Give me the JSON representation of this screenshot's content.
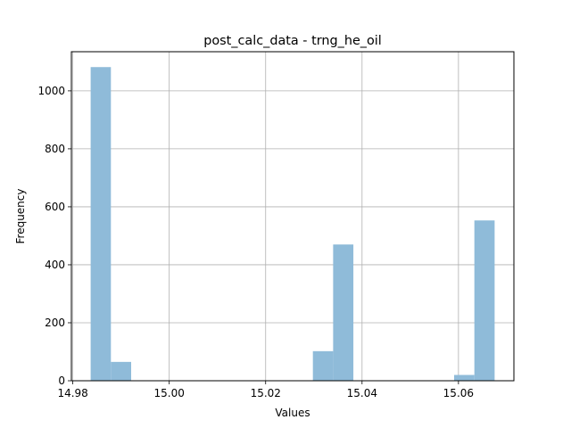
{
  "chart_data": {
    "type": "bar",
    "title": "post_calc_data - trng_he_oil",
    "xlabel": "Values",
    "ylabel": "Frequency",
    "xlim": [
      14.9797,
      15.0715
    ],
    "ylim": [
      0,
      1135
    ],
    "grid": true,
    "bar_color": "#8fbbd9",
    "x_ticks": [
      14.98,
      15.0,
      15.02,
      15.04,
      15.06
    ],
    "x_tick_labels": [
      "14.98",
      "15.00",
      "15.02",
      "15.04",
      "15.06"
    ],
    "y_ticks": [
      0,
      200,
      400,
      600,
      800,
      1000
    ],
    "y_tick_labels": [
      "0",
      "200",
      "400",
      "600",
      "800",
      "1000"
    ],
    "bins": [
      {
        "x0": 14.9837,
        "x1": 14.9879,
        "value": 1082
      },
      {
        "x0": 14.9879,
        "x1": 14.9921,
        "value": 65
      },
      {
        "x0": 15.0298,
        "x1": 15.034,
        "value": 102
      },
      {
        "x0": 15.034,
        "x1": 15.0382,
        "value": 470
      },
      {
        "x0": 15.0591,
        "x1": 15.0633,
        "value": 20
      },
      {
        "x0": 15.0633,
        "x1": 15.0675,
        "value": 553
      }
    ]
  }
}
